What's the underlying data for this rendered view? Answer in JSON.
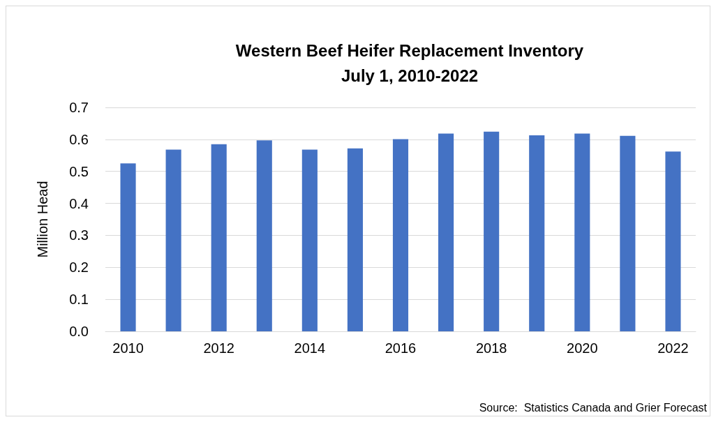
{
  "chart_data": {
    "type": "bar",
    "title": "Western Beef Heifer Replacement Inventory\nJuly 1, 2010-2022",
    "ylabel": "Million Head",
    "categories": [
      "2010",
      null,
      "2012",
      null,
      "2014",
      null,
      "2016",
      null,
      "2018",
      null,
      "2020",
      null,
      "2022"
    ],
    "values": [
      0.525,
      0.568,
      0.585,
      0.597,
      0.568,
      0.572,
      0.601,
      0.618,
      0.624,
      0.613,
      0.618,
      0.611,
      0.562
    ],
    "color": "#4472c4",
    "ylim": [
      0,
      0.7
    ],
    "yticks": [
      {
        "value": 0,
        "label": "0.0"
      },
      0.1,
      0.2,
      0.3,
      0.4,
      0.5,
      0.6,
      0.7
    ],
    "grid": "y",
    "annotations": [
      "Source:  Statistics Canada and Grier Forecast"
    ]
  }
}
